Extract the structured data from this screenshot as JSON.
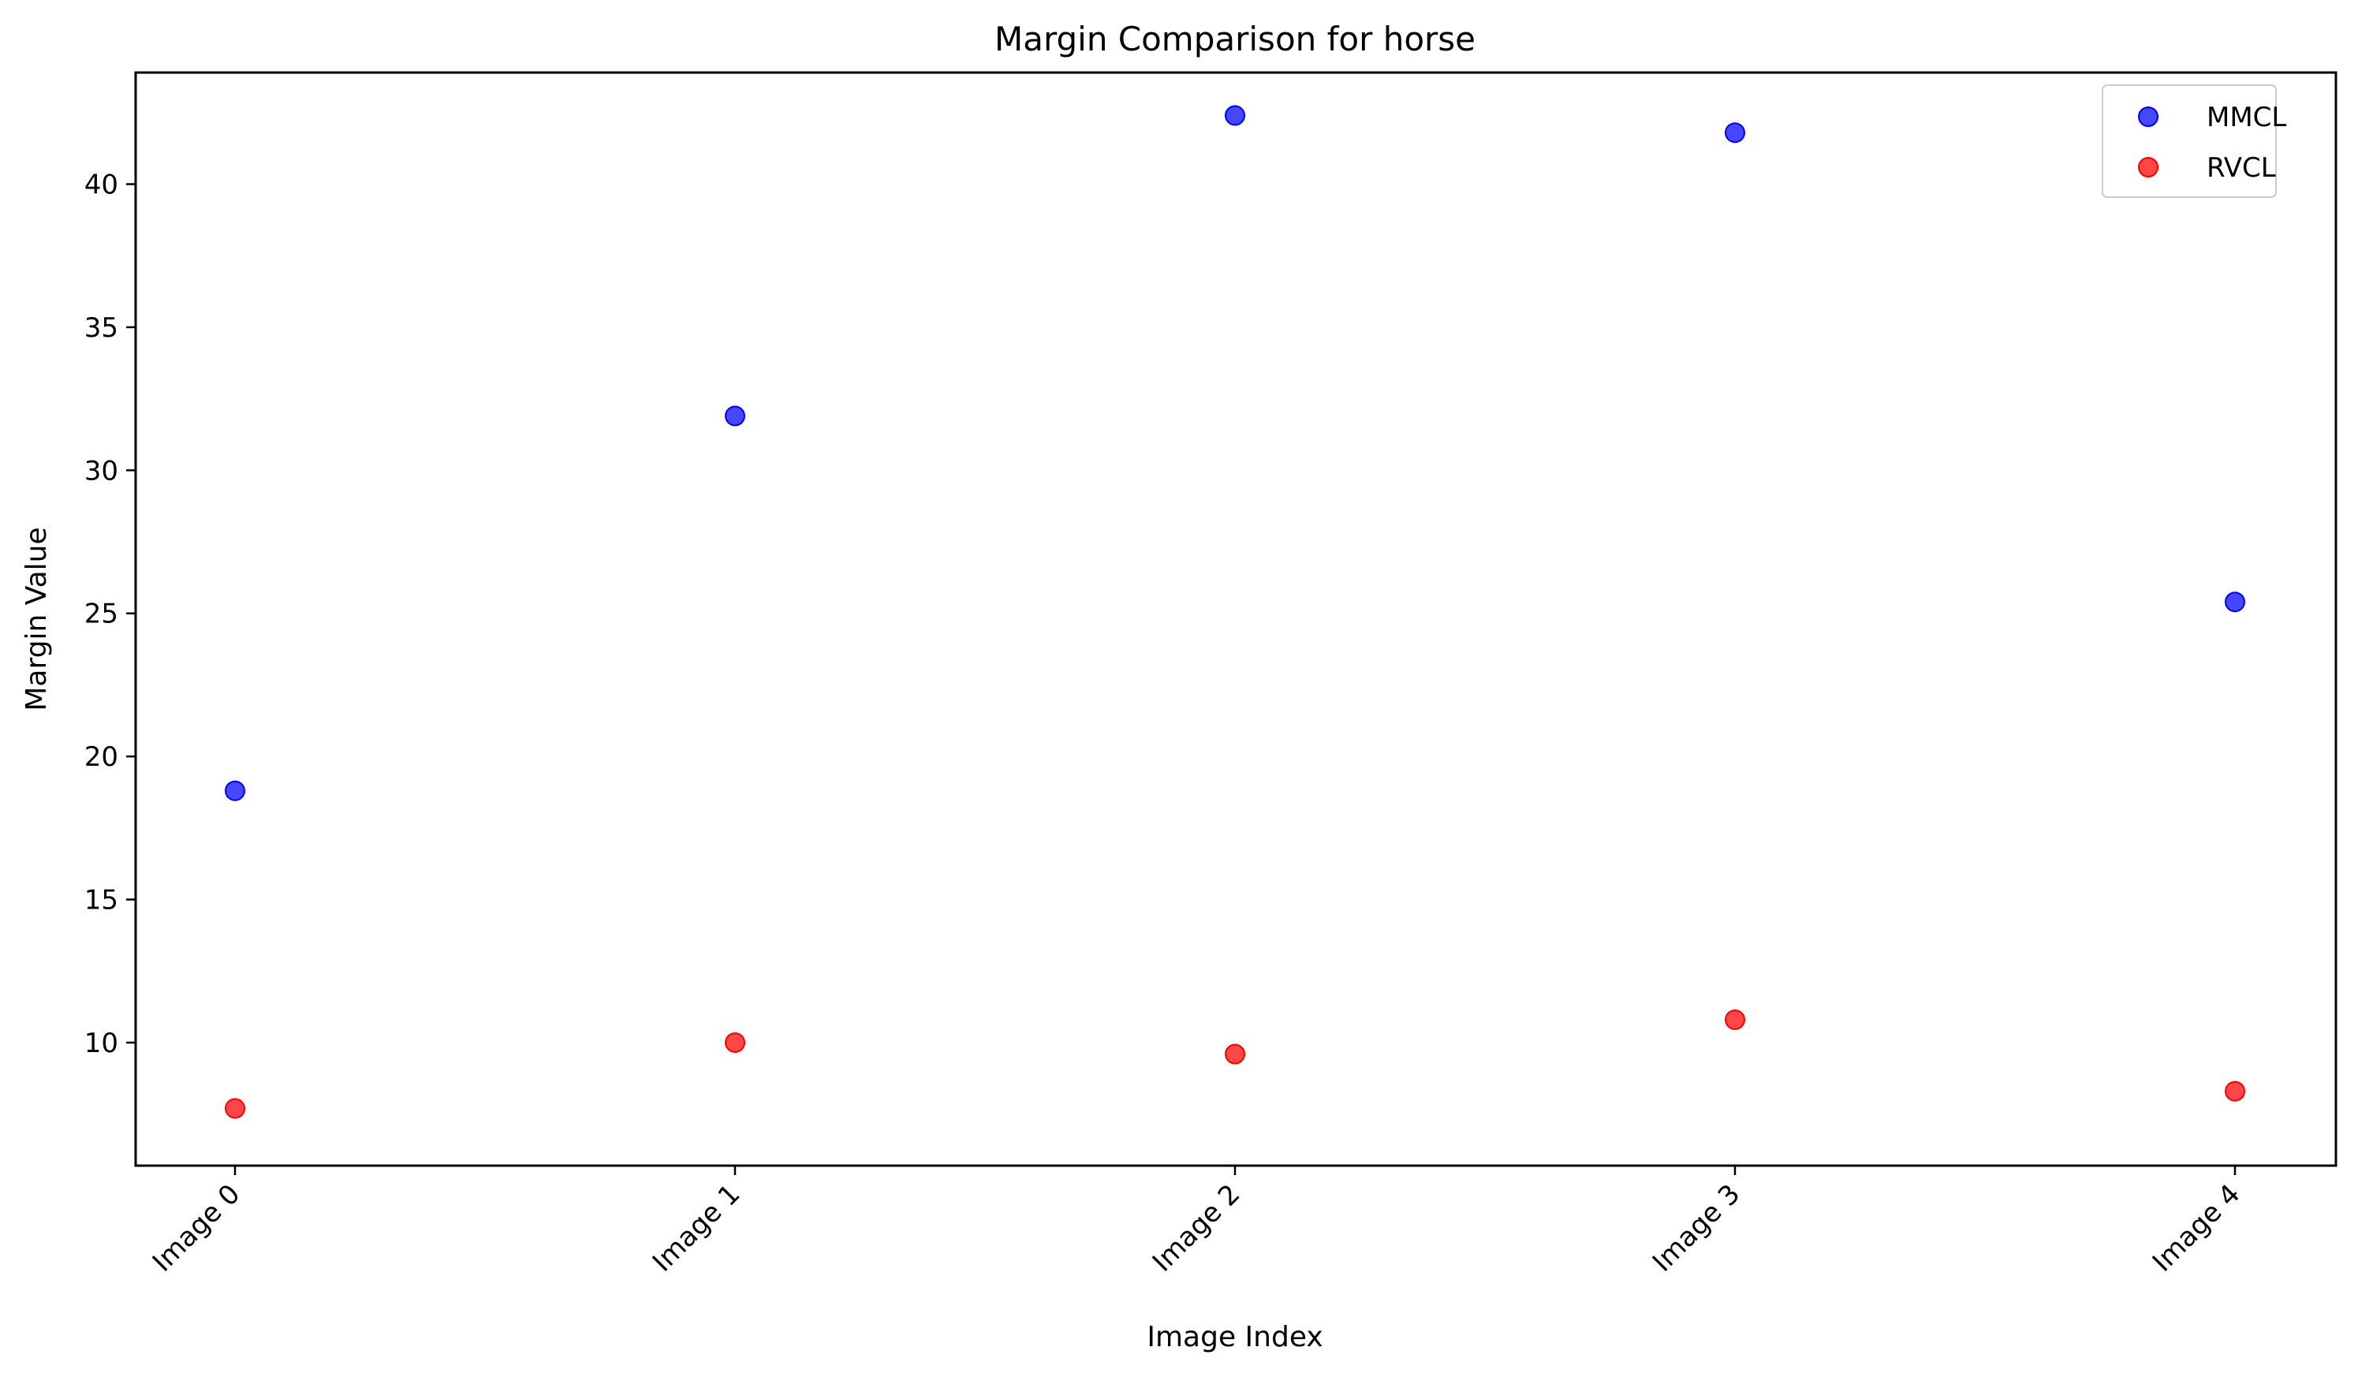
{
  "chart_data": {
    "type": "scatter",
    "title": "Margin Comparison for horse",
    "xlabel": "Image Index",
    "ylabel": "Margin Value",
    "categories": [
      "Image 0",
      "Image 1",
      "Image 2",
      "Image 3",
      "Image 4"
    ],
    "yticks": [
      10,
      15,
      20,
      25,
      30,
      35,
      40
    ],
    "ylim": [
      5.7,
      43.9
    ],
    "grid": false,
    "legend_position": "top-right",
    "series": [
      {
        "name": "MMCL",
        "color": "#0000ff",
        "values": [
          18.8,
          31.9,
          42.4,
          41.8,
          25.4
        ]
      },
      {
        "name": "RVCL",
        "color": "#ff0000",
        "values": [
          7.7,
          10.0,
          9.6,
          10.8,
          8.3
        ]
      }
    ]
  }
}
